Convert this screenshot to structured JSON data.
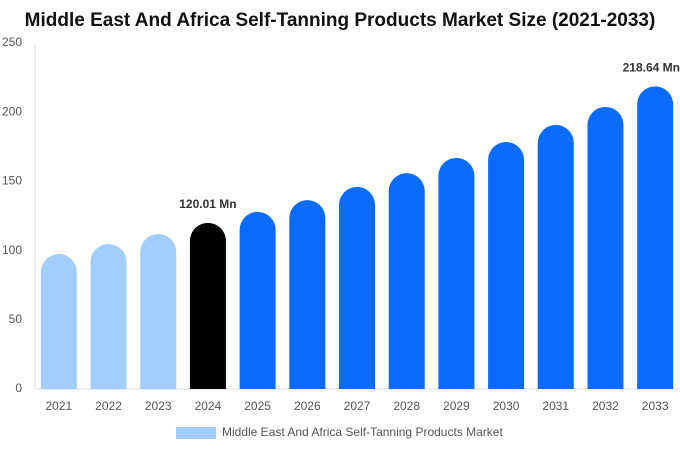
{
  "chart_data": {
    "type": "bar",
    "title": "Middle East And Africa Self-Tanning Products Market Size (2021-2033)",
    "categories": [
      "2021",
      "2022",
      "2023",
      "2024",
      "2025",
      "2026",
      "2027",
      "2028",
      "2029",
      "2030",
      "2031",
      "2032",
      "2033"
    ],
    "series": [
      {
        "name": "Middle East And Africa Self-Tanning Products Market",
        "color": "#a3cdfd",
        "colors": [
          "#a3cdfd",
          "#a3cdfd",
          "#a3cdfd",
          "#000000",
          "#0a6cff",
          "#0a6cff",
          "#0a6cff",
          "#0a6cff",
          "#0a6cff",
          "#0a6cff",
          "#0a6cff",
          "#0a6cff",
          "#0a6cff"
        ],
        "values": [
          97.5,
          104.8,
          112,
          120.01,
          128,
          136.5,
          146,
          156,
          167,
          178.5,
          190.8,
          203.8,
          218.64
        ],
        "value_labels": [
          null,
          null,
          null,
          "120.01 Mn",
          null,
          null,
          null,
          null,
          null,
          null,
          null,
          null,
          "218.64 Mn"
        ]
      }
    ],
    "ylim": [
      0,
      250
    ],
    "yticks": [
      0,
      50,
      100,
      150,
      200,
      250
    ],
    "grid": false,
    "legend": "bottom"
  }
}
